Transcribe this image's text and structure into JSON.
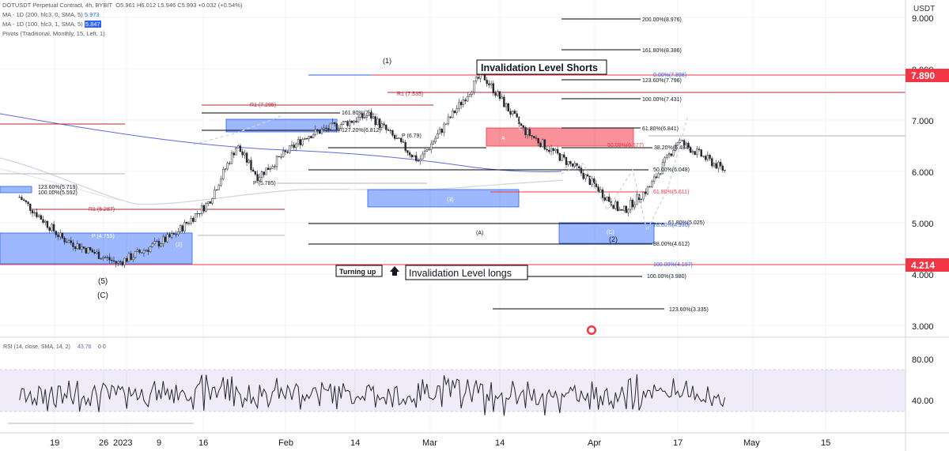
{
  "header": {
    "symbol_line_prefix": "DOTUSDT Perpetual Contract, 4h, BYBIT",
    "ohlc": "O5.961  H6.012  L5.946  C5.993  +0.032 (+0.54%)",
    "ma1_label": "MA - 1D (200, hlc3, 0, SMA, 5)",
    "ma1_value": "5.973",
    "ma2_label": "MA - 1D (100, hlc3, 1, SMA, 5)",
    "ma2_value": "5.847",
    "pivots_label": "Pivots (Traditional, Monthly, 15, Left, 1)"
  },
  "axis": {
    "currency": "USDT",
    "price_ticks": [
      "9.000",
      "8.000",
      "7.000",
      "6.000",
      "5.000",
      "4.000",
      "3.000"
    ],
    "rsi_ticks": [
      "80.00",
      "40.00"
    ],
    "time_ticks": [
      "19",
      "26",
      "2023",
      "9",
      "16",
      "Feb",
      "14",
      "Mar",
      "14",
      "Apr",
      "17",
      "May",
      "15"
    ],
    "price_badge_top": "7.890",
    "price_badge_bottom": "4.214"
  },
  "rsi": {
    "label": "RSI (14, close, SMA, 14, 2)",
    "value": "43.76",
    "extra": "0  0"
  },
  "labels": {
    "invalidation_shorts": "Invalidation Level Shorts",
    "invalidation_longs": "Invalidation Level longs",
    "turning_up": "Turning up"
  },
  "fib_levels": [
    {
      "text": "200.00%(8.976)"
    },
    {
      "text": "161.80%(8.386)"
    },
    {
      "text": "0.00%(7.898)"
    },
    {
      "text": "123.60%(7.796)"
    },
    {
      "text": "R1 (7.535)"
    },
    {
      "text": "100.00%(7.431)"
    },
    {
      "text": "61.80%(6.841)"
    },
    {
      "text": "50.00%(6.577)"
    },
    {
      "text": "38.20%(6.484)"
    },
    {
      "text": "50.00%(6.048)"
    },
    {
      "text": "61.80%(5.611)"
    },
    {
      "text": "61.80%(5.025)"
    },
    {
      "text": "78.60%(4.990)"
    },
    {
      "text": "88.00%(4.612)"
    },
    {
      "text": "100.00%(4.197)"
    },
    {
      "text": "100.00%(3.980)"
    },
    {
      "text": "123.60%(3.335)"
    }
  ],
  "left_labels": [
    {
      "text": "R1 (7.295)"
    },
    {
      "text": "161.80%(7.1..."
    },
    {
      "text": "127.20%(6.812)"
    },
    {
      "text": "P (6.79)"
    },
    {
      "text": "P (5.785)"
    },
    {
      "text": "123.60%(5.719)"
    },
    {
      "text": "100.00%(5.592)"
    },
    {
      "text": "R1 (5.287)"
    },
    {
      "text": "P (4.755)"
    }
  ],
  "wave_labels": [
    {
      "text": "(1)"
    },
    {
      "text": "(5)"
    },
    {
      "text": "(C)"
    },
    {
      "text": "(2)"
    },
    {
      "text": "(A)"
    },
    {
      "text": "(B)"
    },
    {
      "text": "(4)"
    },
    {
      "text": "(3)"
    },
    {
      "text": "(C)"
    },
    {
      "text": "(2)"
    },
    {
      "text": "A"
    },
    {
      "text": "C"
    },
    {
      "text": "(5)"
    }
  ],
  "colors": {
    "up": "#26282e",
    "red": "#f23645",
    "blue": "#2962ff",
    "box_blue": "rgba(41,98,255,0.45)",
    "box_red": "rgba(242,54,69,0.55)",
    "rsi_band": "rgba(126,87,194,0.12)"
  },
  "chart_data": {
    "type": "candlestick",
    "symbol": "DOTUSDT Perpetual Contract",
    "interval": "4h",
    "exchange": "BYBIT",
    "last_price": 5.993,
    "ohlc": {
      "open": 5.961,
      "high": 6.012,
      "low": 5.946,
      "close": 5.993,
      "change": 0.032,
      "change_pct": 0.54
    },
    "ylim": [
      2.8,
      9.2
    ],
    "price_path_approx": [
      {
        "date": "2022-12-14",
        "price": 5.5
      },
      {
        "date": "2022-12-20",
        "price": 4.7
      },
      {
        "date": "2022-12-28",
        "price": 4.21
      },
      {
        "date": "2023-01-05",
        "price": 4.75
      },
      {
        "date": "2023-01-10",
        "price": 5.4
      },
      {
        "date": "2023-01-14",
        "price": 6.5
      },
      {
        "date": "2023-01-17",
        "price": 5.9
      },
      {
        "date": "2023-01-24",
        "price": 6.7
      },
      {
        "date": "2023-02-02",
        "price": 7.1
      },
      {
        "date": "2023-02-09",
        "price": 6.2
      },
      {
        "date": "2023-02-18",
        "price": 7.9
      },
      {
        "date": "2023-02-24",
        "price": 6.8
      },
      {
        "date": "2023-03-04",
        "price": 6.0
      },
      {
        "date": "2023-03-10",
        "price": 5.2
      },
      {
        "date": "2023-03-14",
        "price": 5.7
      },
      {
        "date": "2023-03-18",
        "price": 6.6
      },
      {
        "date": "2023-03-25",
        "price": 5.99
      }
    ],
    "rsi": {
      "period": 14,
      "value": 43.76,
      "levels": [
        70,
        30
      ]
    },
    "horizontal_levels": [
      8.976,
      8.386,
      7.898,
      7.89,
      7.796,
      7.535,
      7.431,
      6.841,
      6.577,
      6.484,
      6.048,
      5.611,
      5.025,
      4.99,
      4.612,
      4.214,
      4.197,
      3.98,
      3.335
    ]
  }
}
